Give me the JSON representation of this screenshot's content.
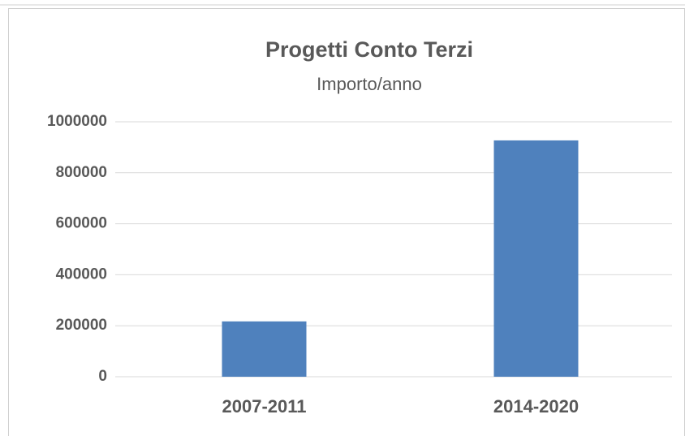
{
  "chart_data": {
    "type": "bar",
    "title": "Progetti Conto Terzi",
    "subtitle": "Importo/anno",
    "categories": [
      "2007-2011",
      "2014-2020"
    ],
    "values": [
      217000,
      927000
    ],
    "color": "#4f81bd",
    "ylim": [
      0,
      1000000
    ],
    "yticks": [
      0,
      200000,
      400000,
      600000,
      800000,
      1000000
    ],
    "grid": true
  }
}
